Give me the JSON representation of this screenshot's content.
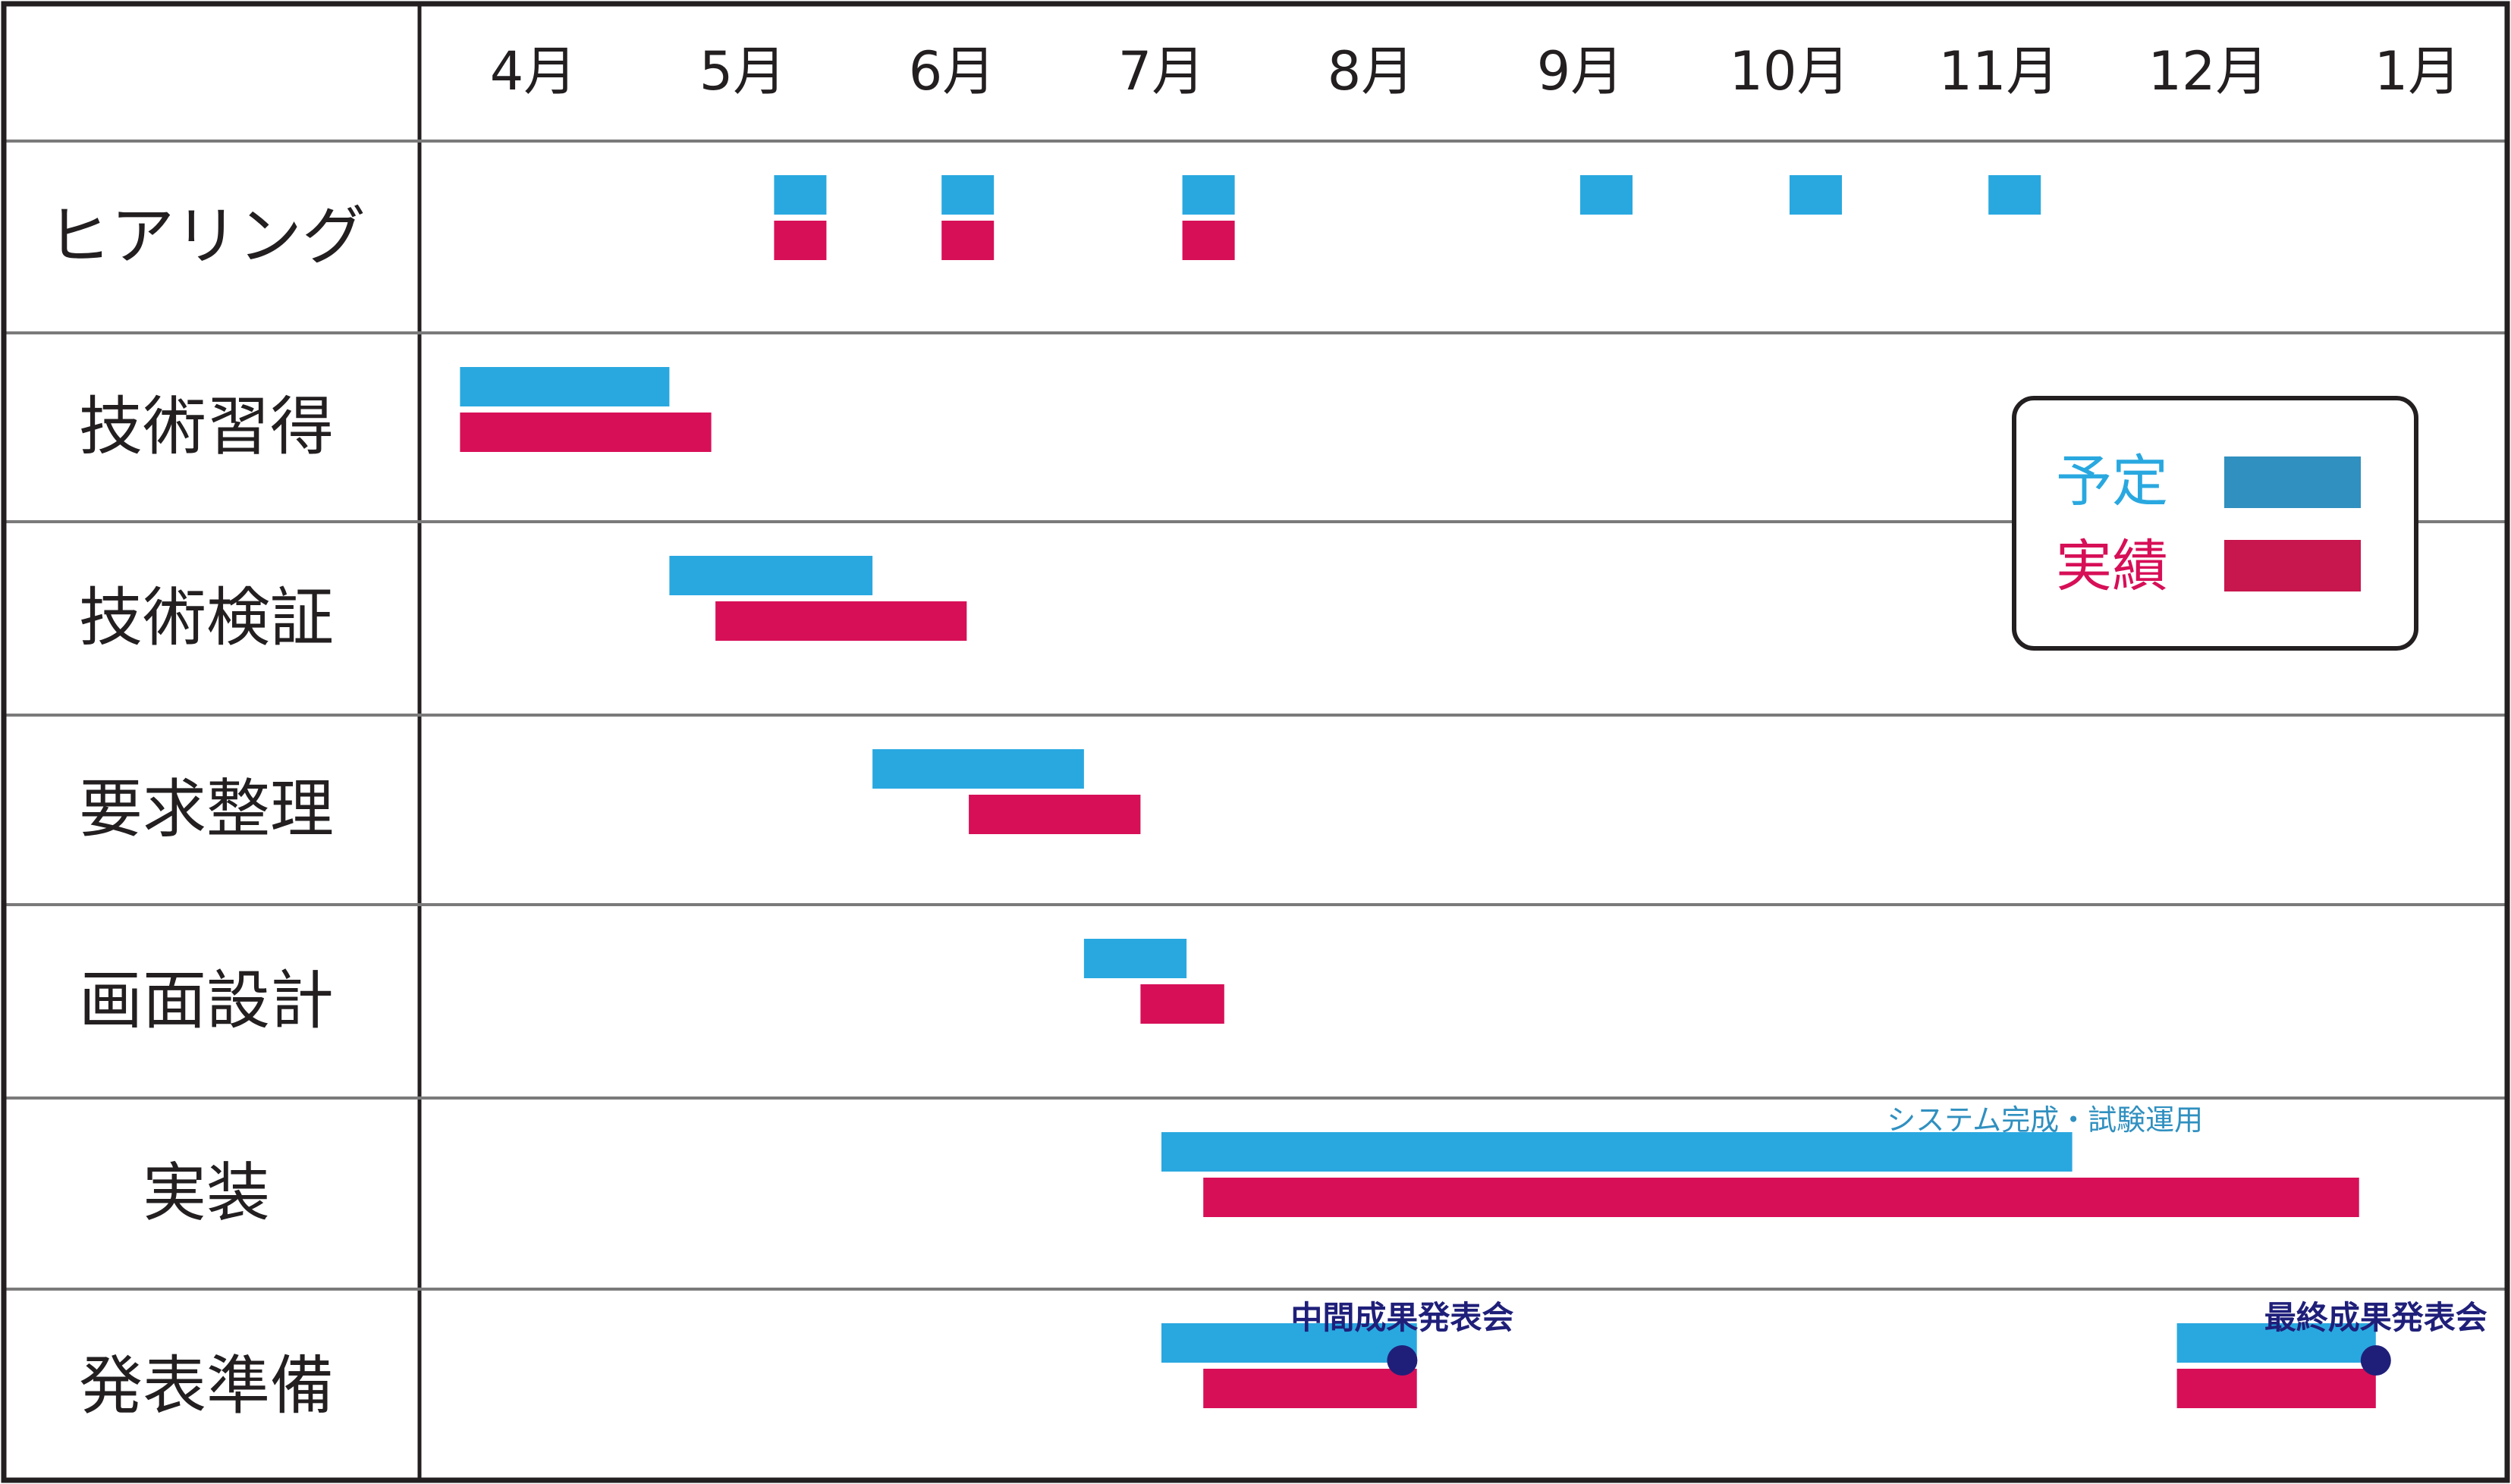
{
  "chart_data": {
    "type": "gantt",
    "months": [
      "4月",
      "5月",
      "6月",
      "7月",
      "8月",
      "9月",
      "10月",
      "11月",
      "12月",
      "1月"
    ],
    "tasks": [
      {
        "label": "ヒアリング",
        "planned": [
          [
            5.15,
            5.4
          ],
          [
            5.95,
            6.2
          ],
          [
            7.1,
            7.35
          ],
          [
            9.0,
            9.25
          ],
          [
            10.0,
            10.25
          ],
          [
            10.95,
            11.2
          ]
        ],
        "actual": [
          [
            5.15,
            5.4
          ],
          [
            5.95,
            6.2
          ],
          [
            7.1,
            7.35
          ]
        ]
      },
      {
        "label": "技術習得",
        "planned": [
          [
            3.65,
            4.65
          ]
        ],
        "actual": [
          [
            3.65,
            4.85
          ]
        ]
      },
      {
        "label": "技術検証",
        "planned": [
          [
            4.65,
            5.62
          ]
        ],
        "actual": [
          [
            4.87,
            6.07
          ]
        ]
      },
      {
        "label": "要求整理",
        "planned": [
          [
            5.62,
            6.63
          ]
        ],
        "actual": [
          [
            6.08,
            6.9
          ]
        ]
      },
      {
        "label": "画面設計",
        "planned": [
          [
            6.63,
            7.12
          ]
        ],
        "actual": [
          [
            6.9,
            7.3
          ]
        ]
      },
      {
        "label": "実装",
        "planned": [
          [
            7.0,
            11.35
          ]
        ],
        "actual": [
          [
            7.2,
            12.72
          ]
        ]
      },
      {
        "label": "発表準備",
        "planned": [
          [
            7.0,
            8.22
          ],
          [
            11.85,
            12.8
          ]
        ],
        "actual": [
          [
            7.2,
            8.22
          ],
          [
            11.85,
            12.8
          ]
        ]
      }
    ],
    "annotations": [
      {
        "text": "システム完成・試験運用",
        "month": 11.22,
        "row": 5
      }
    ],
    "milestones": [
      {
        "label": "中間成果発表会",
        "month": 8.15,
        "row": 6
      },
      {
        "label": "最終成果発表会",
        "month": 12.8,
        "row": 6
      }
    ],
    "legend": {
      "placement": "right",
      "items": [
        {
          "label": "予定",
          "series": "planned"
        },
        {
          "label": "実績",
          "series": "actual"
        }
      ]
    }
  },
  "colors": {
    "planned": "#29a8e0",
    "actual": "#d70f57",
    "legend_planned_swatch": "#3090c0",
    "legend_actual_swatch": "#c8164e",
    "legend_planned_text": "#29a8e0",
    "legend_actual_text": "#d70f57",
    "milestone": "#1f1f7a",
    "note": "#3090c0",
    "grid": "#7a7a7a",
    "border": "#231f20"
  }
}
